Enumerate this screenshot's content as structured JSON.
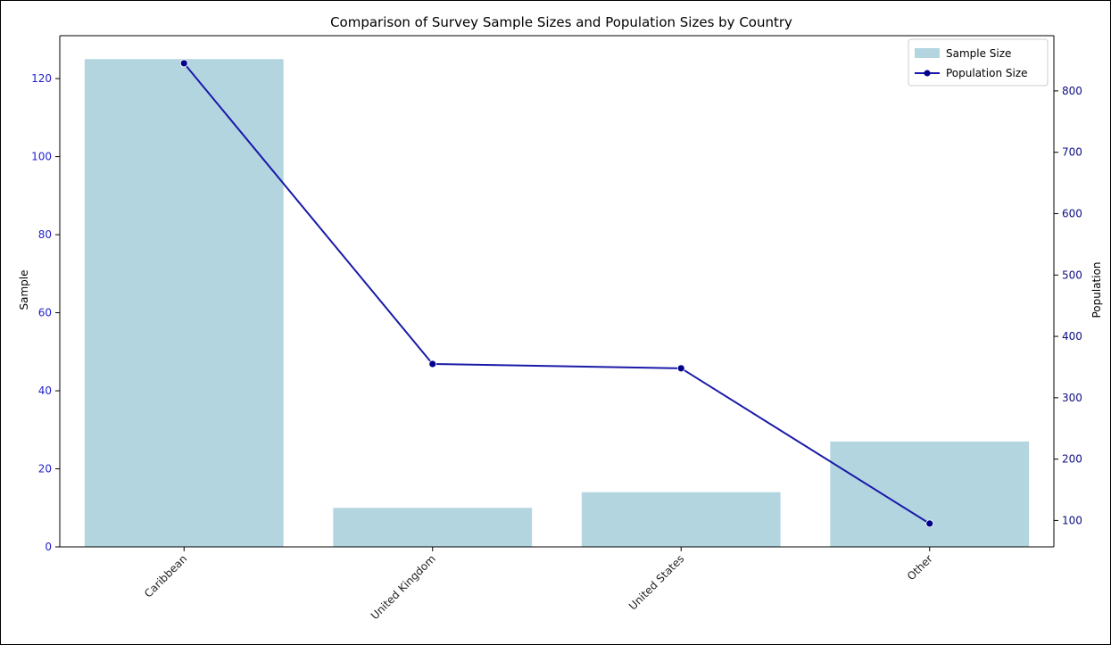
{
  "chart_data": {
    "type": "bar+line",
    "title": "Comparison of Survey Sample Sizes and Population Sizes by Country",
    "categories": [
      "Caribbean",
      "United Kingdom",
      "United States",
      "Other"
    ],
    "series": [
      {
        "name": "Sample Size",
        "type": "bar",
        "axis": "left",
        "values": [
          125,
          10,
          14,
          27
        ],
        "color": "#b3d5e0"
      },
      {
        "name": "Population Size",
        "type": "line",
        "axis": "right",
        "values": [
          845,
          355,
          348,
          95
        ],
        "color": "#1a1aa8",
        "marker_color": "#00008b"
      }
    ],
    "ylabel_left": "Sample",
    "ylabel_right": "Population",
    "ylim_left": [
      0,
      131
    ],
    "ylim_right": [
      57,
      890
    ],
    "yticks_left": [
      0,
      20,
      40,
      60,
      80,
      100,
      120
    ],
    "yticks_right": [
      100,
      200,
      300,
      400,
      500,
      600,
      700,
      800
    ],
    "legend": "top-right",
    "grid": false,
    "left_tick_color": "#1f1fd0",
    "right_tick_color": "#0d0d80"
  }
}
